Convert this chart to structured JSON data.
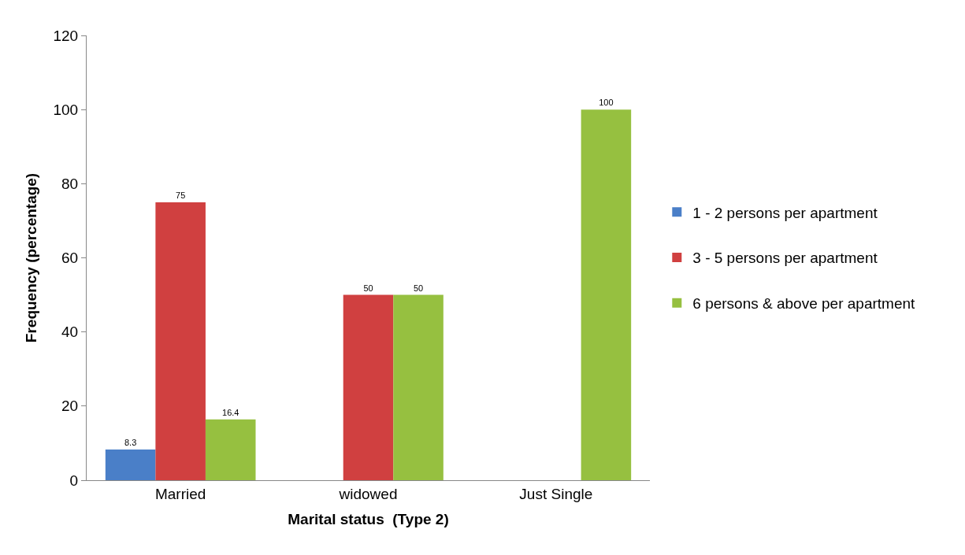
{
  "chart_data": {
    "type": "bar",
    "xlabel": "Marital status  (Type 2)",
    "ylabel": "Frequency (percentage)",
    "categories": [
      "Married",
      "widowed",
      "Just Single"
    ],
    "series": [
      {
        "name": "1 - 2 persons per apartment",
        "color": "#4a7fc8",
        "values": [
          8.3,
          null,
          null
        ]
      },
      {
        "name": "3 - 5 persons per apartment",
        "color": "#d04040",
        "values": [
          75,
          50,
          null
        ]
      },
      {
        "name": "6 persons & above per apartment",
        "color": "#96c040",
        "values": [
          16.4,
          50,
          100
        ]
      }
    ],
    "ylim": [
      0,
      120
    ],
    "yticks": [
      0,
      20,
      40,
      60,
      80,
      100,
      120
    ],
    "data_labels": true,
    "legend": "right"
  }
}
